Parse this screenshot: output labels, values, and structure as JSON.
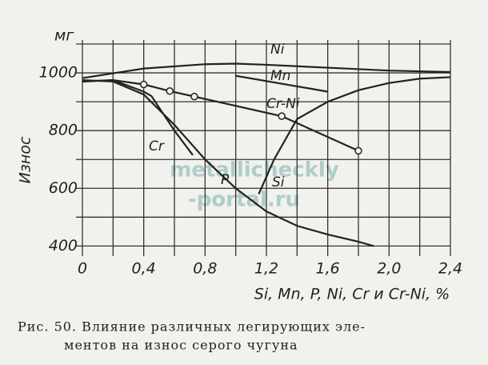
{
  "chart_data": {
    "type": "line",
    "y_unit": "мг",
    "y_label": "Износ",
    "x_label": "Si, Mn, P, Ni, Cr и Cr-Ni, %",
    "caption": [
      "Рис. 50. Влияние различных легирующих эле-",
      "ментов на износ серого чугуна"
    ],
    "watermark": [
      "metallicheckly",
      "-portal.ru"
    ],
    "xlim": [
      0,
      2.4
    ],
    "ylim": [
      365,
      1100
    ],
    "xticks": [
      0,
      {
        "value": 0.4,
        "label": "0,4"
      },
      {
        "value": 0.8,
        "label": "0,8"
      },
      {
        "value": 1.2,
        "label": "1,2"
      },
      {
        "value": 1.6,
        "label": "1,6"
      },
      {
        "value": 2.0,
        "label": "2,0"
      },
      {
        "value": 2.4,
        "label": "2,4"
      }
    ],
    "yticks": [
      400,
      600,
      800,
      1000
    ],
    "xgrid": [
      0,
      0.2,
      0.4,
      0.6,
      0.8,
      1.0,
      1.2,
      1.4,
      1.6,
      1.8,
      2.0,
      2.2,
      2.4
    ],
    "ygrid": [
      400,
      500,
      600,
      700,
      800,
      900,
      1000,
      1100
    ],
    "grid": true,
    "series": [
      {
        "name": "Ni",
        "color": "#222",
        "marker": false,
        "x": [
          0,
          0.4,
          0.8,
          1.0,
          1.2,
          1.6,
          2.0,
          2.4
        ],
        "values": [
          982,
          1015,
          1030,
          1032,
          1028,
          1018,
          1008,
          1003
        ]
      },
      {
        "name": "Mn",
        "color": "#222",
        "marker": false,
        "x": [
          1.0,
          1.6
        ],
        "values": [
          990,
          935
        ]
      },
      {
        "name": "Cr-Ni",
        "color": "#222",
        "marker": true,
        "x": [
          0,
          0.2,
          0.4,
          0.57,
          0.73,
          1.3,
          1.8
        ],
        "values": [
          970,
          975,
          960,
          937,
          918,
          850,
          730
        ]
      },
      {
        "name": "Cr",
        "color": "#222",
        "marker": false,
        "x": [
          0,
          0.2,
          0.4,
          0.45,
          0.6,
          0.72
        ],
        "values": [
          970,
          975,
          935,
          920,
          800,
          715
        ]
      },
      {
        "name": "P",
        "color": "#222",
        "marker": false,
        "x": [
          0,
          0.2,
          0.4,
          0.6,
          0.8,
          1.0,
          1.2,
          1.4,
          1.6,
          1.8,
          1.9
        ],
        "values": [
          975,
          970,
          925,
          820,
          700,
          600,
          520,
          470,
          440,
          415,
          400
        ]
      },
      {
        "name": "Si",
        "color": "#222",
        "marker": false,
        "x": [
          1.15,
          1.25,
          1.4,
          1.6,
          1.8,
          2.0,
          2.2,
          2.4
        ],
        "values": [
          580,
          700,
          840,
          900,
          940,
          965,
          980,
          985
        ]
      }
    ]
  }
}
